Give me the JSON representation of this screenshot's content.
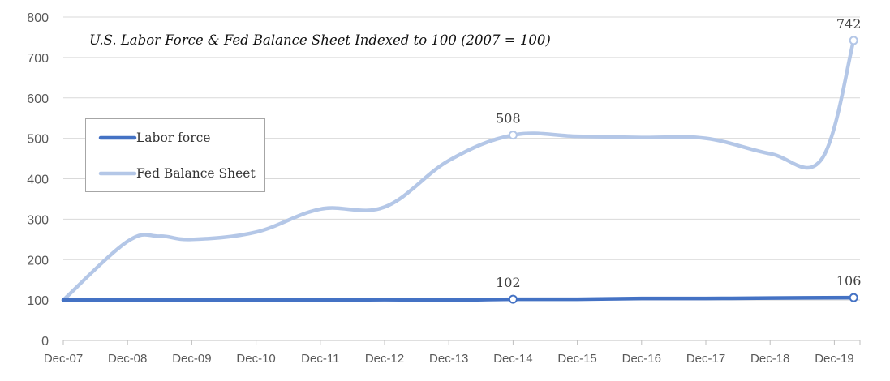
{
  "chart_data": {
    "type": "line",
    "title": "U.S. Labor Force & Fed Balance Sheet Indexed to 100 (2007 = 100)",
    "xlabel": "",
    "ylabel": "",
    "ylim": [
      0,
      800
    ],
    "yticks": [
      0,
      100,
      200,
      300,
      400,
      500,
      600,
      700,
      800
    ],
    "categories": [
      "Dec-07",
      "Dec-08",
      "Dec-09",
      "Dec-10",
      "Dec-11",
      "Dec-12",
      "Dec-13",
      "Dec-14",
      "Dec-15",
      "Dec-16",
      "Dec-17",
      "Dec-18",
      "Dec-19"
    ],
    "grid": true,
    "legend": "left-middle",
    "series": [
      {
        "name": "Labor force",
        "color": "#4472C4",
        "values": [
          {
            "x": 0,
            "y": 100
          },
          {
            "x": 1,
            "y": 100
          },
          {
            "x": 2,
            "y": 100
          },
          {
            "x": 3,
            "y": 100
          },
          {
            "x": 4,
            "y": 100
          },
          {
            "x": 5,
            "y": 101
          },
          {
            "x": 6,
            "y": 100
          },
          {
            "x": 7,
            "y": 102
          },
          {
            "x": 8,
            "y": 102
          },
          {
            "x": 9,
            "y": 104
          },
          {
            "x": 10,
            "y": 104
          },
          {
            "x": 11,
            "y": 105
          },
          {
            "x": 12.3,
            "y": 106
          }
        ],
        "labels": [
          {
            "x": 7,
            "y": 102,
            "text": "102"
          },
          {
            "x": 12.3,
            "y": 106,
            "text": "106"
          }
        ]
      },
      {
        "name": "Fed Balance Sheet",
        "color": "#B4C7E7",
        "values": [
          {
            "x": 0,
            "y": 100
          },
          {
            "x": 1,
            "y": 245
          },
          {
            "x": 1.5,
            "y": 258
          },
          {
            "x": 2,
            "y": 250
          },
          {
            "x": 3,
            "y": 268
          },
          {
            "x": 4,
            "y": 325
          },
          {
            "x": 5,
            "y": 330
          },
          {
            "x": 6,
            "y": 445
          },
          {
            "x": 7,
            "y": 508
          },
          {
            "x": 8,
            "y": 505
          },
          {
            "x": 9,
            "y": 502
          },
          {
            "x": 10,
            "y": 500
          },
          {
            "x": 11,
            "y": 462
          },
          {
            "x": 11.8,
            "y": 448
          },
          {
            "x": 12.3,
            "y": 742
          }
        ],
        "labels": [
          {
            "x": 7,
            "y": 508,
            "text": "508"
          },
          {
            "x": 12.3,
            "y": 742,
            "text": "742"
          }
        ]
      }
    ]
  }
}
